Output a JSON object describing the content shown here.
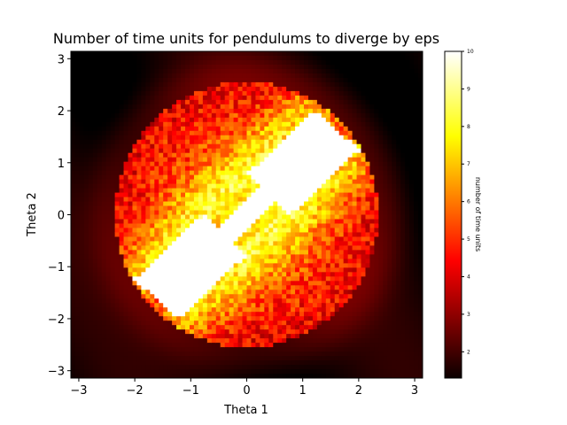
{
  "chart_data": {
    "type": "heatmap",
    "title": "Number of time units for pendulums to diverge by eps",
    "xlabel": "Theta 1",
    "ylabel": "Theta 2",
    "xlim": [
      -3.14159,
      3.14159
    ],
    "ylim": [
      -3.14159,
      3.14159
    ],
    "xticks": [
      -3,
      -2,
      -1,
      0,
      1,
      2,
      3
    ],
    "xtick_labels": [
      "−3",
      "−2",
      "−1",
      "0",
      "1",
      "2",
      "3"
    ],
    "yticks": [
      -3,
      -2,
      -1,
      0,
      1,
      2,
      3
    ],
    "ytick_labels": [
      "−3",
      "−2",
      "−1",
      "0",
      "1",
      "2",
      "3"
    ],
    "colormap": "hot",
    "colorbar": {
      "label": "number of time units",
      "range": [
        1.3,
        10
      ],
      "ticks": [
        2,
        3,
        4,
        5,
        6,
        7,
        8,
        9,
        10
      ],
      "tick_labels": [
        "2",
        "3",
        "4",
        "5",
        "6",
        "7",
        "8",
        "9",
        "10"
      ]
    },
    "grid": false,
    "description_of_field": {
      "outer_region_value": 1.5,
      "central_diagonal_band_value": 10,
      "ring_region_value_range": [
        3,
        8
      ]
    }
  }
}
